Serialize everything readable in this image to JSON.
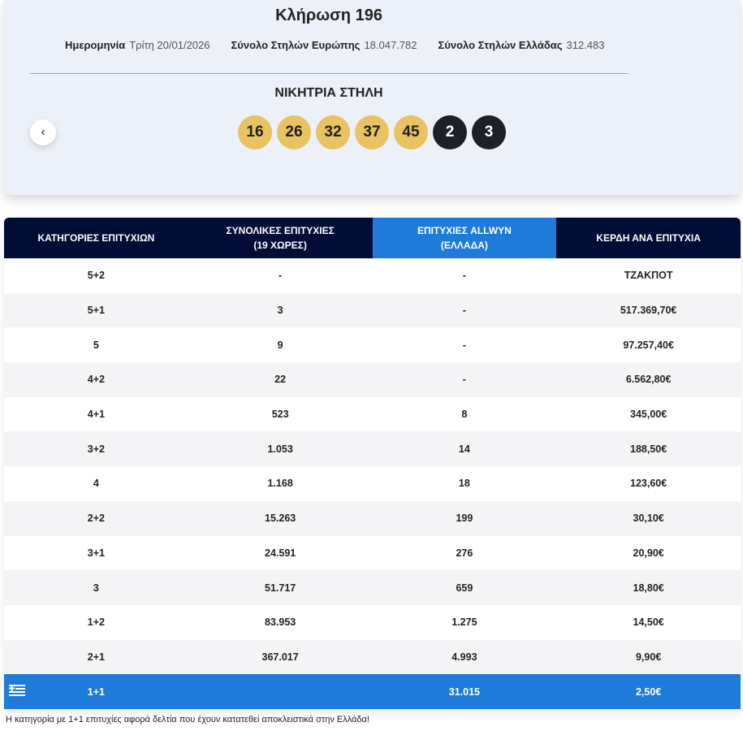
{
  "header": {
    "title": "Κλήρωση 196",
    "info": [
      {
        "label": "Ημερομηνία",
        "value": "Τρίτη 20/01/2026"
      },
      {
        "label": "Σύνολο Στηλών Ευρώπης",
        "value": "18.047.782"
      },
      {
        "label": "Σύνολο Στηλών Ελλάδας",
        "value": "312.483"
      }
    ],
    "winning_title": "ΝΙΚΗΤΡΙΑ ΣΤΗΛΗ",
    "numbers": [
      16,
      26,
      32,
      37,
      45
    ],
    "stars": [
      2,
      3
    ]
  },
  "table": {
    "headers": [
      "ΚΑΤΗΓΟΡΙΕΣ ΕΠΙΤΥΧΙΩΝ",
      "ΣΥΝΟΛΙΚΕΣ ΕΠΙΤΥΧΙΕΣ (19 ΧΩΡΕΣ)",
      "ΕΠΙΤΥΧΙΕΣ ALLWYN (ΕΛΛΑΔΑ)",
      "ΚΕΡΔΗ ΑΝΑ ΕΠΙΤΥΧΙΑ"
    ],
    "rows": [
      [
        "5+2",
        "-",
        "-",
        "ΤΖΑΚΠΟΤ"
      ],
      [
        "5+1",
        "3",
        "-",
        "517.369,70€"
      ],
      [
        "5",
        "9",
        "-",
        "97.257,40€"
      ],
      [
        "4+2",
        "22",
        "-",
        "6.562,80€"
      ],
      [
        "4+1",
        "523",
        "8",
        "345,00€"
      ],
      [
        "3+2",
        "1.053",
        "14",
        "188,50€"
      ],
      [
        "4",
        "1.168",
        "18",
        "123,60€"
      ],
      [
        "2+2",
        "15.263",
        "199",
        "30,10€"
      ],
      [
        "3+1",
        "24.591",
        "276",
        "20,90€"
      ],
      [
        "3",
        "51.717",
        "659",
        "18,80€"
      ],
      [
        "1+2",
        "83.953",
        "1.275",
        "14,50€"
      ],
      [
        "2+1",
        "367.017",
        "4.993",
        "9,90€"
      ],
      [
        "1+1",
        null,
        "31.015",
        "2,50€"
      ]
    ]
  },
  "note": "Η κατηγορία με 1+1 επιτυχίες αφορά δελτία που έχουν κατατεθεί αποκλειστικά στην Ελλάδα!"
}
